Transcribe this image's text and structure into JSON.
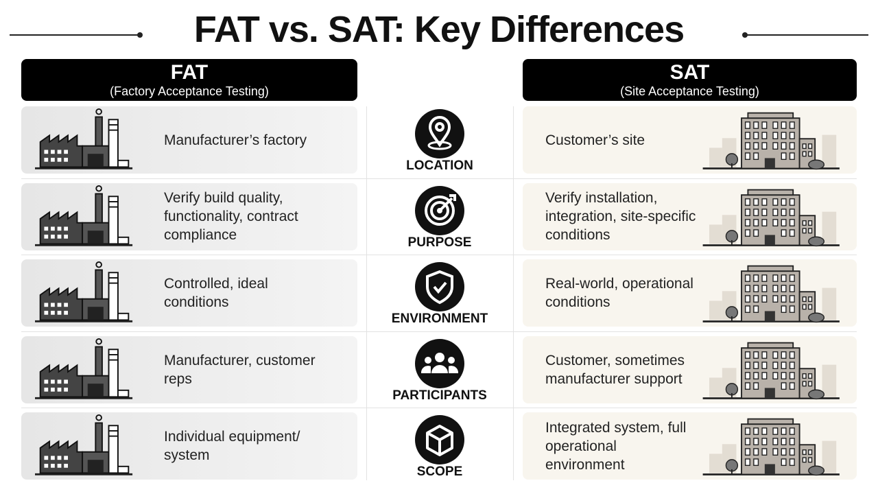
{
  "title": "FAT vs. SAT: Key Differences",
  "fat": {
    "title": "FAT",
    "subtitle": "(Factory Acceptance Testing)"
  },
  "sat": {
    "title": "SAT",
    "subtitle": "(Site Acceptance Testing)"
  },
  "rows": [
    {
      "label": "LOCATION",
      "fat": "Manufacturer’s factory",
      "sat": "Customer’s site"
    },
    {
      "label": "PURPOSE",
      "fat": "Verify build quality, functionality, contract compliance",
      "sat": "Verify installation, integration, site-specific conditions"
    },
    {
      "label": "ENVIRONMENT",
      "fat": "Controlled, ideal conditions",
      "sat": "Real-world, operational conditions"
    },
    {
      "label": "PARTICIPANTS",
      "fat": "Manufacturer, customer reps",
      "sat": "Customer, sometimes manufacturer support"
    },
    {
      "label": "SCOPE",
      "fat": "Individual equipment/ system",
      "sat": "Integrated system, full operational environment"
    }
  ]
}
